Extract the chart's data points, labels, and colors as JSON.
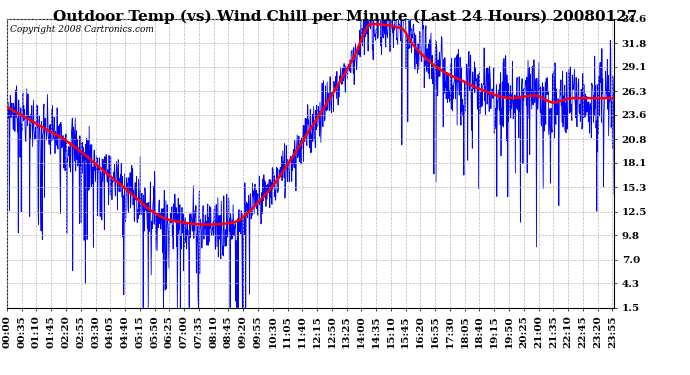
{
  "title": "Outdoor Temp (vs) Wind Chill per Minute (Last 24 Hours) 20080127",
  "copyright": "Copyright 2008 Cartronics.com",
  "yticks": [
    1.5,
    4.3,
    7.0,
    9.8,
    12.5,
    15.3,
    18.1,
    20.8,
    23.6,
    26.3,
    29.1,
    31.8,
    34.6
  ],
  "ylim": [
    1.5,
    34.6
  ],
  "bg_color": "#ffffff",
  "plot_bg_color": "#ffffff",
  "grid_color": "#bbbbbb",
  "blue_color": "#0000ff",
  "red_color": "#ff0000",
  "title_color": "#000000",
  "copyright_color": "#000000",
  "title_fontsize": 11,
  "tick_fontsize": 7.5,
  "copyright_fontsize": 6.5,
  "red_linewidth": 1.8,
  "blue_linewidth": 0.6,
  "red_keypoints_t": [
    0.0,
    0.05,
    0.1,
    0.18,
    0.27,
    0.33,
    0.37,
    0.42,
    0.5,
    0.57,
    0.6,
    0.65,
    0.67,
    0.72,
    0.75,
    0.78,
    0.83,
    0.87,
    0.9,
    0.93,
    0.97,
    1.0
  ],
  "red_keypoints_y": [
    24.5,
    22.5,
    20.5,
    16.0,
    11.5,
    11.0,
    11.2,
    14.0,
    22.0,
    30.0,
    34.0,
    33.5,
    31.5,
    28.5,
    27.5,
    26.5,
    25.5,
    25.8,
    25.0,
    25.5,
    25.5,
    25.5
  ]
}
